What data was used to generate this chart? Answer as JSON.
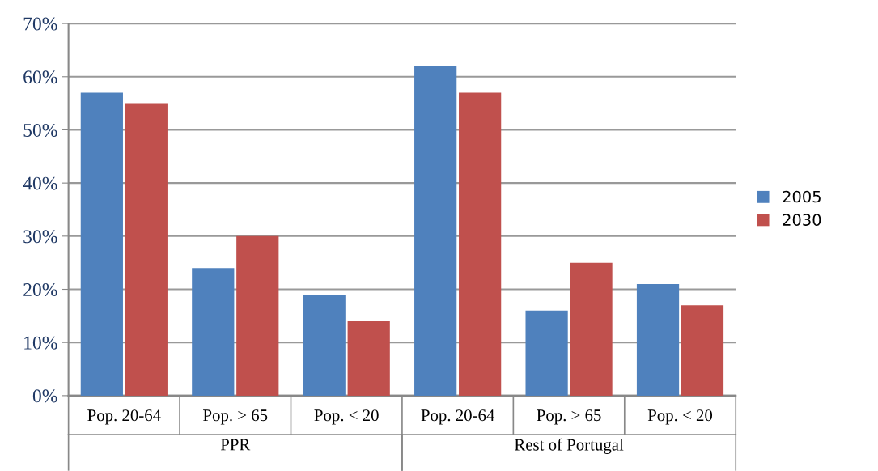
{
  "chart_data": {
    "type": "bar",
    "categories": [
      "Pop. 20-64",
      "Pop. > 65",
      "Pop. < 20",
      "Pop. 20-64",
      "Pop. > 65",
      "Pop. < 20"
    ],
    "series": [
      {
        "name": "2005",
        "color": "#4f81bd",
        "values": [
          57,
          24,
          19,
          62,
          16,
          21
        ]
      },
      {
        "name": "2030",
        "color": "#c0504d",
        "values": [
          55,
          30,
          14,
          57,
          25,
          17
        ]
      }
    ],
    "ylim": [
      0,
      70
    ],
    "yticks": [
      {
        "value": 0,
        "label": "0%"
      },
      {
        "value": 10,
        "label": "10%"
      },
      {
        "value": 20,
        "label": "20%"
      },
      {
        "value": 30,
        "label": "30%"
      },
      {
        "value": 40,
        "label": "40%"
      },
      {
        "value": 50,
        "label": "50%"
      },
      {
        "value": 60,
        "label": "60%"
      },
      {
        "value": 70,
        "label": "70%"
      }
    ],
    "annotations": [
      "PPR",
      "Rest of Portugal"
    ],
    "grid": "y",
    "legend": "right"
  }
}
